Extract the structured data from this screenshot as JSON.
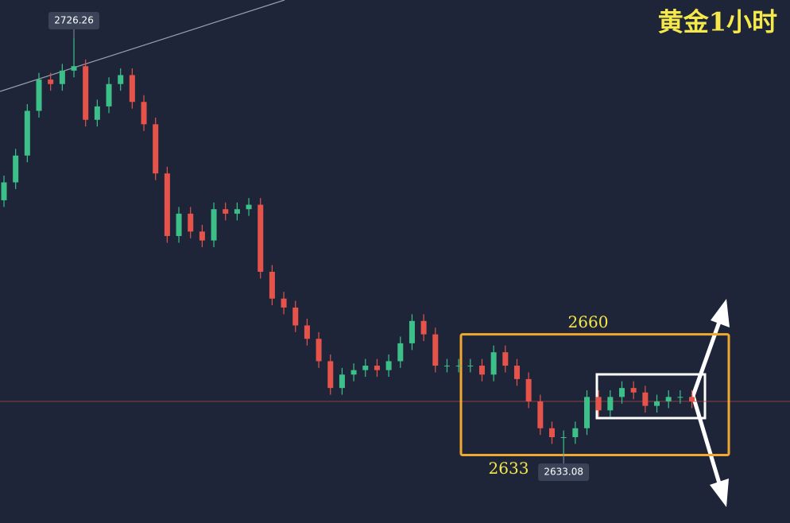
{
  "chart_data": {
    "type": "candlestick",
    "title": "黄金1小时",
    "up_color": "#3dbf8a",
    "down_color": "#e5534b",
    "ylim": [
      2617.8,
      2734.8
    ],
    "open": [
      2690,
      2694,
      2700,
      2710,
      2717,
      2716,
      2719,
      2720,
      2708,
      2711,
      2716,
      2718,
      2712,
      2707,
      2696,
      2682,
      2687,
      2683,
      2681,
      2688,
      2687,
      2688,
      2689,
      2674,
      2668,
      2666,
      2662,
      2659,
      2654,
      2648,
      2651,
      2652,
      2653,
      2652,
      2654,
      2658,
      2663,
      2660,
      2653,
      2653,
      2653,
      2653,
      2651,
      2656,
      2653,
      2650,
      2645,
      2639,
      2637,
      2637,
      2639,
      2646,
      2643,
      2646,
      2648,
      2647,
      2644,
      2645,
      2646,
      2646
    ],
    "high": [
      2695.5,
      2701.5,
      2711.5,
      2718.5,
      2718.5,
      2720.5,
      2726.26,
      2721.5,
      2712.5,
      2717.5,
      2719.5,
      2719.5,
      2713.5,
      2708.5,
      2697.5,
      2688.5,
      2688.5,
      2684.5,
      2689.5,
      2689.5,
      2689.5,
      2690.5,
      2690.5,
      2675.5,
      2669.5,
      2667.5,
      2663.5,
      2660.5,
      2655.5,
      2652.5,
      2653.5,
      2654.5,
      2654.5,
      2655.5,
      2659.5,
      2664.5,
      2664.5,
      2661.5,
      2654.5,
      2654.5,
      2654.5,
      2654.5,
      2657.5,
      2657.5,
      2654.5,
      2651.5,
      2646.5,
      2640.5,
      2638.5,
      2640.5,
      2647.5,
      2647.5,
      2647.5,
      2649.5,
      2649.5,
      2648.5,
      2646.5,
      2647.5,
      2647.5,
      2647.5
    ],
    "low": [
      2688.5,
      2692.5,
      2698.5,
      2708.5,
      2714.5,
      2714.5,
      2717.5,
      2706.5,
      2706.5,
      2709.5,
      2714.5,
      2710.5,
      2705.5,
      2694.5,
      2680.5,
      2680.5,
      2681.5,
      2679.5,
      2679.5,
      2685.5,
      2685.5,
      2686.5,
      2672.5,
      2666.5,
      2664.5,
      2660.5,
      2657.5,
      2652.5,
      2646.5,
      2646.5,
      2649.5,
      2650.5,
      2650.5,
      2650.5,
      2652.5,
      2656.5,
      2658.5,
      2651.5,
      2651.5,
      2651.5,
      2651.5,
      2649.5,
      2649.5,
      2651.5,
      2648.5,
      2643.5,
      2637.5,
      2635.5,
      2633.08,
      2635.5,
      2637.5,
      2641.5,
      2641.5,
      2644.5,
      2645.5,
      2642.5,
      2642.5,
      2643.5,
      2644.5,
      2643.5
    ],
    "close": [
      2694,
      2700,
      2710,
      2717,
      2716,
      2719,
      2720,
      2708,
      2711,
      2716,
      2718,
      2712,
      2707,
      2696,
      2682,
      2687,
      2683,
      2681,
      2688,
      2687,
      2688,
      2689,
      2674,
      2668,
      2666,
      2662,
      2659,
      2654,
      2648,
      2651,
      2652,
      2653,
      2652,
      2654,
      2658,
      2663,
      2660,
      2653,
      2653,
      2653,
      2653,
      2651,
      2656,
      2653,
      2650,
      2645,
      2639,
      2637,
      2637,
      2639,
      2646,
      2643,
      2646,
      2648,
      2647,
      2644,
      2645,
      2646,
      2646,
      2645
    ],
    "high_index": 6,
    "low_index": 48,
    "box": {
      "top": 2660,
      "bottom": 2633,
      "top_label": "2660",
      "bottom_label": "2633"
    }
  }
}
